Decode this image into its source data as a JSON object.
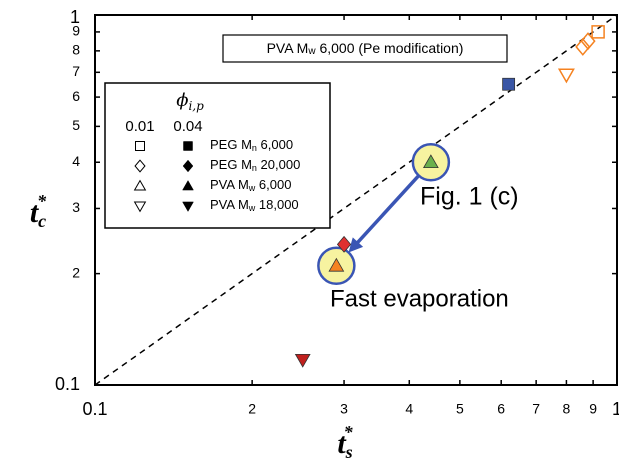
{
  "chart_data": {
    "type": "scatter",
    "log_x": true,
    "log_y": true,
    "xlim": [
      0.1,
      1
    ],
    "ylim": [
      0.1,
      1
    ],
    "xticks": [
      0.1,
      {
        "value": 0.2,
        "label": "2"
      },
      {
        "value": 0.3,
        "label": "3"
      },
      {
        "value": 0.4,
        "label": "4"
      },
      {
        "value": 0.5,
        "label": "5"
      },
      {
        "value": 0.6,
        "label": "6"
      },
      {
        "value": 0.7,
        "label": "7"
      },
      {
        "value": 0.8,
        "label": "8"
      },
      {
        "value": 0.9,
        "label": "9"
      },
      1
    ],
    "yticks": [
      0.1,
      {
        "value": 0.2,
        "label": "2"
      },
      {
        "value": 0.3,
        "label": "3"
      },
      {
        "value": 0.4,
        "label": "4"
      },
      {
        "value": 0.5,
        "label": "5"
      },
      {
        "value": 0.6,
        "label": "6"
      },
      {
        "value": 0.7,
        "label": "7"
      },
      {
        "value": 0.8,
        "label": "8"
      },
      {
        "value": 0.9,
        "label": "9"
      },
      1
    ],
    "xlabel": [
      "t",
      "s",
      "*"
    ],
    "ylabel": [
      "t",
      "c",
      "*"
    ],
    "annotation_box": [
      "PVA M",
      "w",
      " 6,000 (Pe modification)"
    ],
    "annotations": [
      "Fig. 1 (c)",
      "Fast evaporation"
    ],
    "annotation_color": "#3a55b4",
    "legend": {
      "title": "ϕ",
      "title_sub": "i,p",
      "columns": [
        "0.01",
        "0.04"
      ],
      "rows": [
        [
          "PEG M",
          "n",
          " 6,000"
        ],
        [
          "PEG M",
          "n",
          " 20,000"
        ],
        [
          "PVA M",
          "w",
          " 6,000"
        ],
        [
          "PVA M",
          "w",
          " 18,000"
        ]
      ],
      "markers": [
        "square",
        "diamond",
        "triangle",
        "triangle-down"
      ]
    },
    "series": [
      {
        "marker": "square",
        "filled": false,
        "color": "#f58220",
        "x": [
          0.92
        ],
        "y": [
          0.9
        ]
      },
      {
        "marker": "diamond",
        "filled": false,
        "color": "#f58220",
        "x": [
          0.86,
          0.88
        ],
        "y": [
          0.82,
          0.85
        ]
      },
      {
        "marker": "triangle-down",
        "filled": false,
        "color": "#f58220",
        "x": [
          0.8
        ],
        "y": [
          0.69
        ]
      },
      {
        "marker": "square",
        "filled": true,
        "color": "#3a56a5",
        "x": [
          0.62
        ],
        "y": [
          0.65
        ]
      },
      {
        "marker": "triangle",
        "filled": true,
        "color": "#6ab04c",
        "x": [
          0.44
        ],
        "y": [
          0.4
        ],
        "highlight": true
      },
      {
        "marker": "diamond",
        "filled": true,
        "color": "#e03030",
        "x": [
          0.3
        ],
        "y": [
          0.24
        ]
      },
      {
        "marker": "triangle",
        "filled": true,
        "color": "#f58220",
        "x": [
          0.29
        ],
        "y": [
          0.21
        ],
        "highlight": true
      },
      {
        "marker": "triangle-down",
        "filled": true,
        "color": "#c0201e",
        "x": [
          0.25
        ],
        "y": [
          0.117
        ]
      }
    ]
  }
}
